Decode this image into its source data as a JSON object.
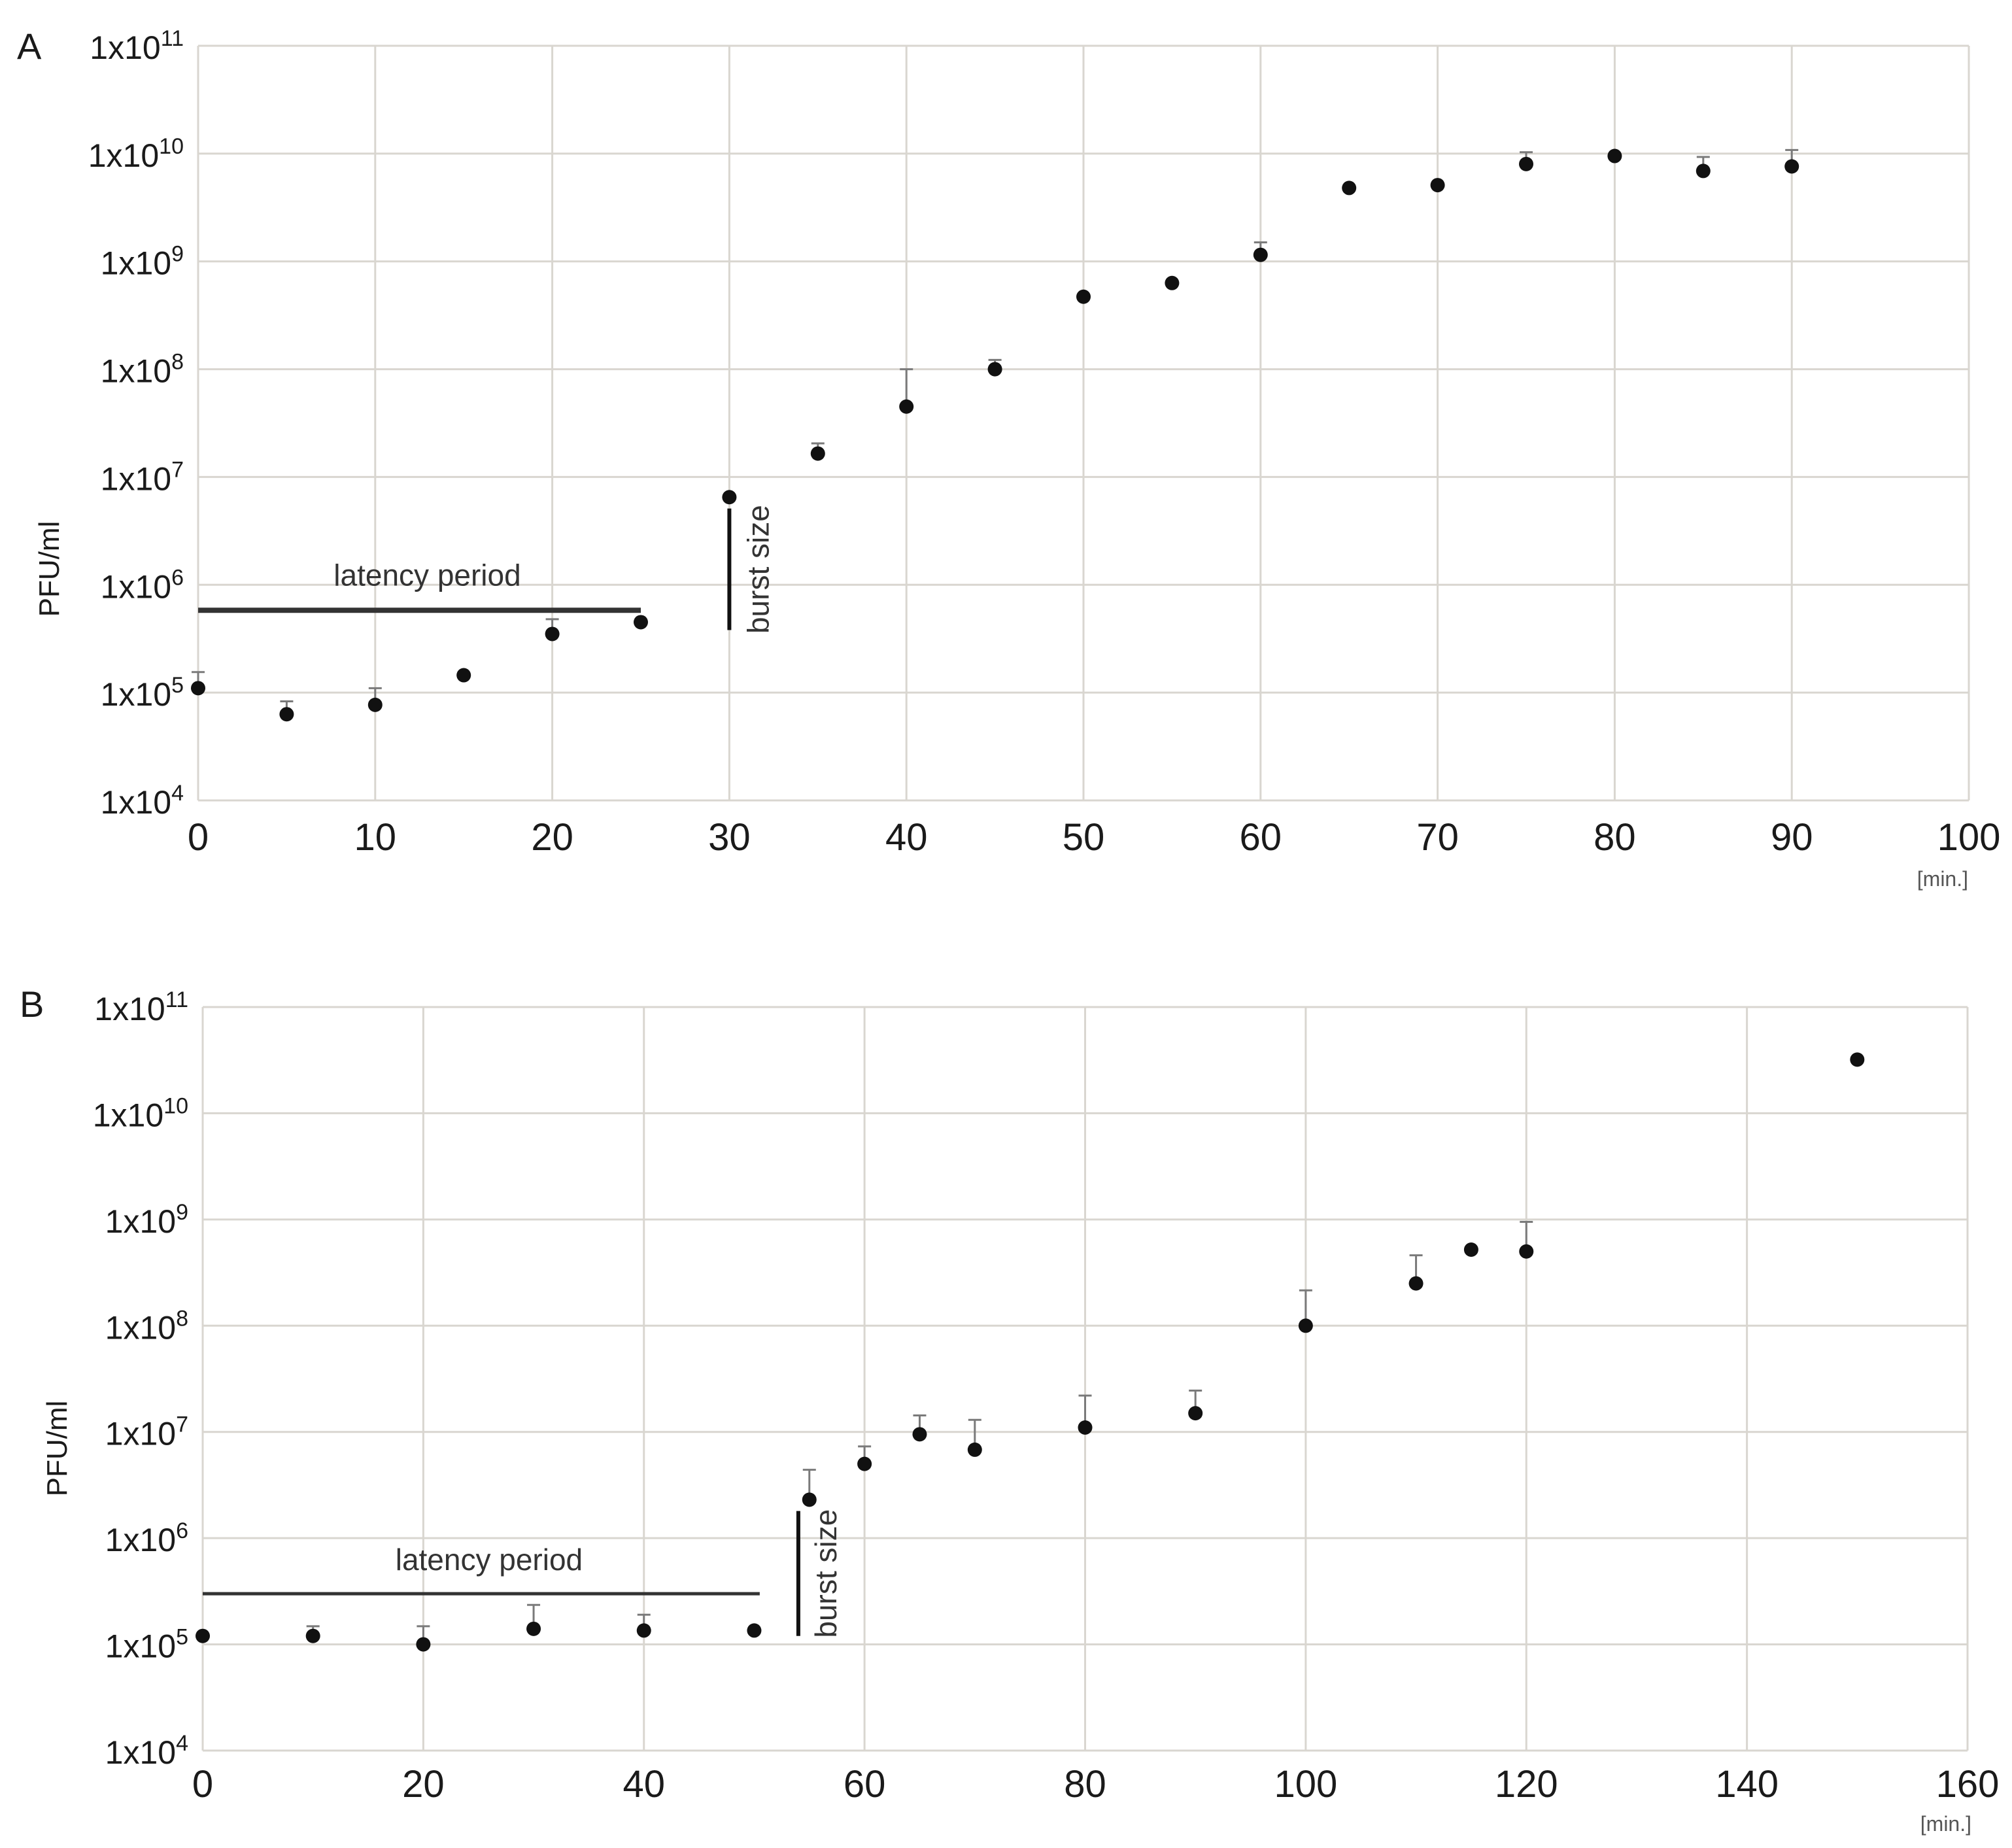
{
  "figure": {
    "marker_color": "#111111",
    "errorbar_color": "#7a7a7a",
    "grid_color": "#d9d6d0",
    "annotation_color": "#333333"
  },
  "chart_data": [
    {
      "type": "scatter",
      "panel_label": "A",
      "ylabel": "PFU/ml",
      "x_unit": "[min.]",
      "yscale": "log",
      "xlim": [
        0,
        100
      ],
      "ylim": [
        10000,
        100000000000
      ],
      "x_ticks": [
        "0",
        "10",
        "20",
        "30",
        "40",
        "50",
        "60",
        "70",
        "80",
        "90",
        "100"
      ],
      "y_ticks": [
        "1x10^4",
        "1x10^5",
        "1x10^6",
        "1x10^7",
        "1x10^8",
        "1x10^9",
        "1x10^10",
        "1x10^11"
      ],
      "y_tick_base": "1x10",
      "y_tick_exponents": [
        "4",
        "5",
        "6",
        "7",
        "8",
        "9",
        "10",
        "11"
      ],
      "grid": true,
      "points": [
        {
          "x": 0,
          "y": 110000,
          "err": 45000
        },
        {
          "x": 5,
          "y": 63000,
          "err": 20000
        },
        {
          "x": 10,
          "y": 77000,
          "err": 33000
        },
        {
          "x": 15,
          "y": 145000,
          "err": 0
        },
        {
          "x": 20,
          "y": 350000,
          "err": 130000
        },
        {
          "x": 25,
          "y": 450000,
          "err": 0
        },
        {
          "x": 30,
          "y": 6500000,
          "err": 0
        },
        {
          "x": 35,
          "y": 16500000,
          "err": 4000000
        },
        {
          "x": 40,
          "y": 45000000,
          "err": 55000000
        },
        {
          "x": 45,
          "y": 100000000,
          "err": 22000000
        },
        {
          "x": 50,
          "y": 470000000,
          "err": 0
        },
        {
          "x": 55,
          "y": 630000000,
          "err": 0
        },
        {
          "x": 60,
          "y": 1150000000,
          "err": 350000000
        },
        {
          "x": 65,
          "y": 4800000000,
          "err": 0
        },
        {
          "x": 70,
          "y": 5100000000,
          "err": 0
        },
        {
          "x": 75,
          "y": 8000000000,
          "err": 2300000000
        },
        {
          "x": 80,
          "y": 9500000000,
          "err": 0
        },
        {
          "x": 85,
          "y": 6900000000,
          "err": 2400000000
        },
        {
          "x": 90,
          "y": 7600000000,
          "err": 3200000000
        }
      ],
      "annotations": {
        "latency": {
          "label": "latency period",
          "x_start": 0,
          "x_end": 25,
          "y": 580000
        },
        "burst": {
          "label": "burst size",
          "x": 30,
          "y_start": 380000,
          "y_end": 5100000
        }
      }
    },
    {
      "type": "scatter",
      "panel_label": "B",
      "ylabel": "PFU/ml",
      "x_unit": "[min.]",
      "yscale": "log",
      "xlim": [
        0,
        160
      ],
      "ylim": [
        10000,
        100000000000
      ],
      "x_ticks": [
        "0",
        "20",
        "40",
        "60",
        "80",
        "100",
        "120",
        "140",
        "160"
      ],
      "y_ticks": [
        "1x10^4",
        "1x10^5",
        "1x10^6",
        "1x10^7",
        "1x10^8",
        "1x10^9",
        "1x10^10",
        "1x10^11"
      ],
      "y_tick_base": "1x10",
      "y_tick_exponents": [
        "4",
        "5",
        "6",
        "7",
        "8",
        "9",
        "10",
        "11"
      ],
      "grid": true,
      "points": [
        {
          "x": 0,
          "y": 120000,
          "err": 0
        },
        {
          "x": 10,
          "y": 120000,
          "err": 28000
        },
        {
          "x": 20,
          "y": 100000,
          "err": 48000
        },
        {
          "x": 30,
          "y": 140000,
          "err": 95000
        },
        {
          "x": 40,
          "y": 135000,
          "err": 55000
        },
        {
          "x": 50,
          "y": 135000,
          "err": 0
        },
        {
          "x": 55,
          "y": 2300000,
          "err": 2100000
        },
        {
          "x": 60,
          "y": 5000000,
          "err": 2300000
        },
        {
          "x": 65,
          "y": 9500000,
          "err": 4800000
        },
        {
          "x": 70,
          "y": 6800000,
          "err": 6200000
        },
        {
          "x": 80,
          "y": 11000000,
          "err": 11000000
        },
        {
          "x": 90,
          "y": 15000000,
          "err": 9500000
        },
        {
          "x": 100,
          "y": 100000000,
          "err": 115000000
        },
        {
          "x": 110,
          "y": 250000000,
          "err": 210000000
        },
        {
          "x": 115,
          "y": 520000000,
          "err": 0
        },
        {
          "x": 120,
          "y": 500000000,
          "err": 450000000
        },
        {
          "x": 150,
          "y": 32000000000,
          "err": 0
        }
      ],
      "annotations": {
        "latency": {
          "label": "latency period",
          "x_start": 0,
          "x_end": 50.5,
          "y": 300000
        },
        "burst": {
          "label": "burst size",
          "x": 54,
          "y_start": 120000,
          "y_end": 1800000
        }
      }
    }
  ]
}
